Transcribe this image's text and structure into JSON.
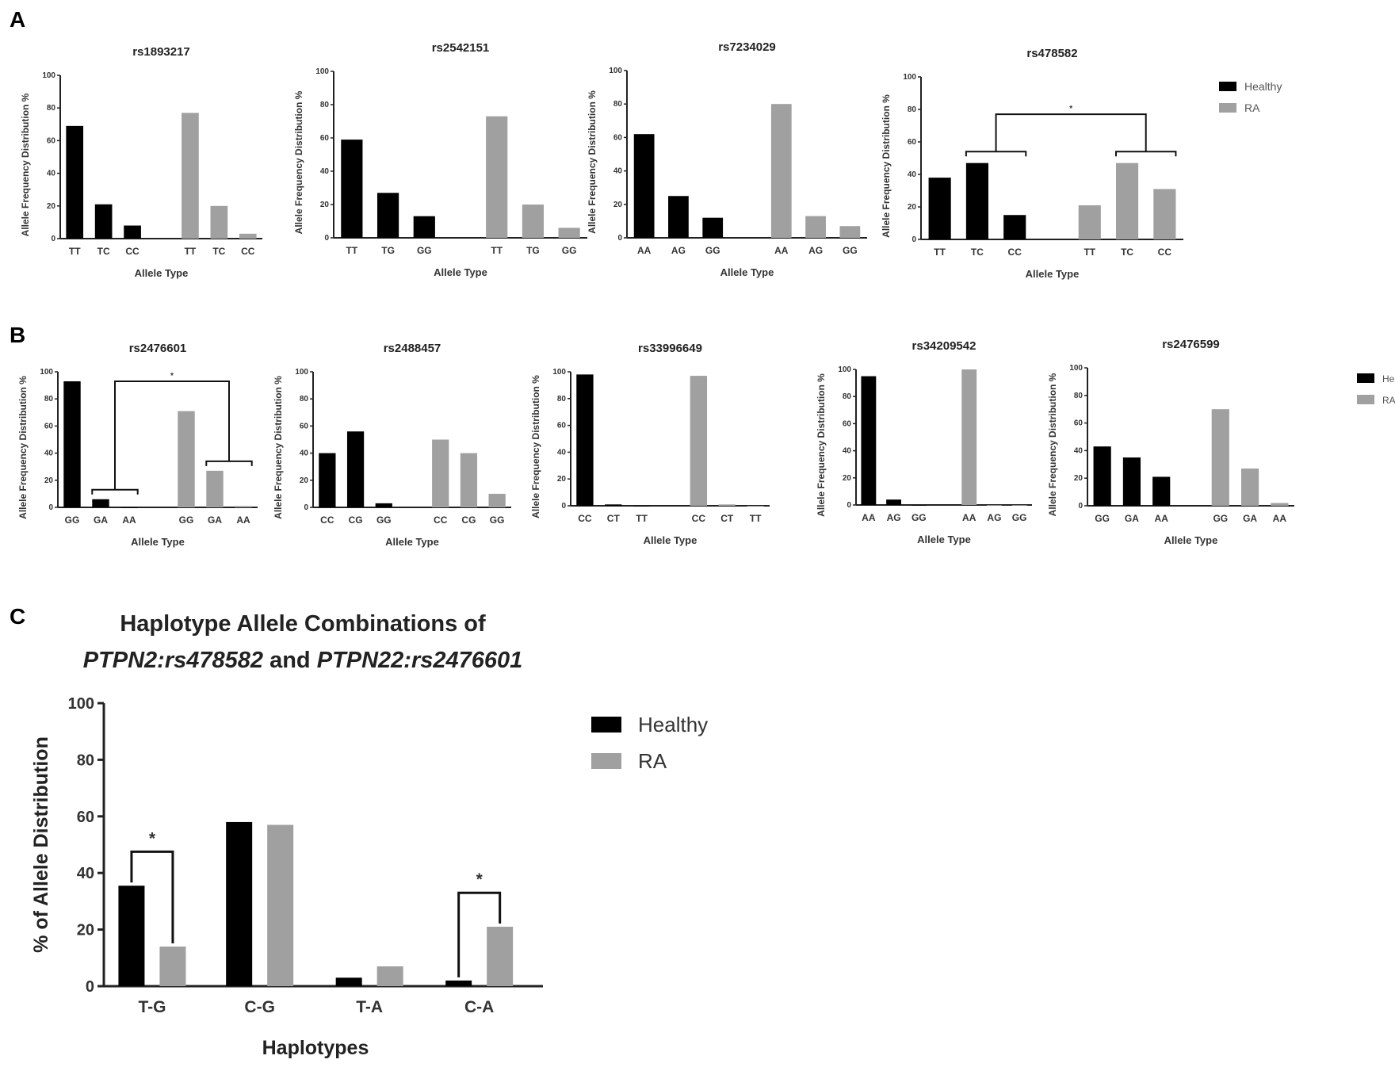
{
  "panel_labels": [
    "A",
    "B",
    "C"
  ],
  "colors": {
    "Healthy": "#000000",
    "RA": "#a0a0a0"
  },
  "legend": [
    "Healthy",
    "RA"
  ],
  "chart_data": [
    {
      "type": "bar",
      "title": "rs1893217",
      "xlabel": "Allele Type",
      "ylabel": "Allele Frequency Distribution %",
      "ylim": [
        0,
        100
      ],
      "yticks": [
        "0",
        "20",
        "40",
        "60",
        "80",
        "100"
      ],
      "categories": [
        "TT",
        "TC",
        "CC"
      ],
      "series": [
        {
          "name": "Healthy",
          "values": [
            69,
            21,
            8
          ]
        },
        {
          "name": "RA",
          "values": [
            77,
            20,
            3
          ]
        }
      ]
    },
    {
      "type": "bar",
      "title": "rs2542151",
      "xlabel": "Allele Type",
      "ylabel": "Allele Frequency Distribution %",
      "ylim": [
        0,
        100
      ],
      "yticks": [
        "0",
        "20",
        "40",
        "60",
        "80",
        "100"
      ],
      "categories": [
        "TT",
        "TG",
        "GG"
      ],
      "series": [
        {
          "name": "Healthy",
          "values": [
            59,
            27,
            13
          ]
        },
        {
          "name": "RA",
          "values": [
            73,
            20,
            6
          ]
        }
      ]
    },
    {
      "type": "bar",
      "title": "rs7234029",
      "xlabel": "Allele Type",
      "ylabel": "Allele Frequency Distribution %",
      "ylim": [
        0,
        100
      ],
      "yticks": [
        "0",
        "20",
        "40",
        "60",
        "80",
        "100"
      ],
      "categories": [
        "AA",
        "AG",
        "GG"
      ],
      "series": [
        {
          "name": "Healthy",
          "values": [
            62,
            25,
            12
          ]
        },
        {
          "name": "RA",
          "values": [
            80,
            13,
            7
          ]
        }
      ]
    },
    {
      "type": "bar",
      "title": "rs478582",
      "xlabel": "Allele Type",
      "ylabel": "Allele Frequency Distribution %",
      "ylim": [
        0,
        100
      ],
      "yticks": [
        "0",
        "20",
        "40",
        "60",
        "80",
        "100"
      ],
      "categories": [
        "TT",
        "TC",
        "CC"
      ],
      "series": [
        {
          "name": "Healthy",
          "values": [
            38,
            47,
            15
          ]
        },
        {
          "name": "RA",
          "values": [
            21,
            47,
            31
          ]
        }
      ],
      "significance": {
        "healthy_indices": [
          1,
          2
        ],
        "ra_indices": [
          1,
          2
        ],
        "label": "*"
      }
    },
    {
      "type": "bar",
      "title": "rs2476601",
      "xlabel": "Allele Type",
      "ylabel": "Allele Frequency Distribution %",
      "ylim": [
        0,
        100
      ],
      "yticks": [
        "0",
        "20",
        "40",
        "60",
        "80",
        "100"
      ],
      "categories": [
        "GG",
        "GA",
        "AA"
      ],
      "series": [
        {
          "name": "Healthy",
          "values": [
            93,
            6,
            0
          ]
        },
        {
          "name": "RA",
          "values": [
            71,
            27,
            1
          ]
        }
      ],
      "significance": {
        "healthy_indices": [
          1,
          2
        ],
        "ra_indices": [
          1,
          2
        ],
        "label": "*"
      }
    },
    {
      "type": "bar",
      "title": "rs2488457",
      "xlabel": "Allele Type",
      "ylabel": "Allele Frequency Distribution %",
      "ylim": [
        0,
        100
      ],
      "yticks": [
        "0",
        "20",
        "40",
        "60",
        "80",
        "100"
      ],
      "categories": [
        "CC",
        "CG",
        "GG"
      ],
      "series": [
        {
          "name": "Healthy",
          "values": [
            40,
            56,
            3
          ]
        },
        {
          "name": "RA",
          "values": [
            50,
            40,
            10
          ]
        }
      ]
    },
    {
      "type": "bar",
      "title": "rs33996649",
      "xlabel": "Allele Type",
      "ylabel": "Allele Frequency Distribution %",
      "ylim": [
        0,
        100
      ],
      "yticks": [
        "0",
        "20",
        "40",
        "60",
        "80",
        "100"
      ],
      "categories": [
        "CC",
        "CT",
        "TT"
      ],
      "series": [
        {
          "name": "Healthy",
          "values": [
            98,
            1,
            0
          ]
        },
        {
          "name": "RA",
          "values": [
            97,
            1,
            0
          ]
        }
      ]
    },
    {
      "type": "bar",
      "title": "rs34209542",
      "xlabel": "Allele Type",
      "ylabel": "Allele Frequency Distribution %",
      "ylim": [
        0,
        100
      ],
      "yticks": [
        "0",
        "20",
        "40",
        "60",
        "80",
        "100"
      ],
      "categories": [
        "AA",
        "AG",
        "GG"
      ],
      "series": [
        {
          "name": "Healthy",
          "values": [
            95,
            4,
            0
          ]
        },
        {
          "name": "RA",
          "values": [
            100,
            0,
            0
          ]
        }
      ]
    },
    {
      "type": "bar",
      "title": "rs2476599",
      "xlabel": "Allele Type",
      "ylabel": "Allele Frequency Distribution %",
      "ylim": [
        0,
        100
      ],
      "yticks": [
        "0",
        "20",
        "40",
        "60",
        "80",
        "100"
      ],
      "categories": [
        "GG",
        "GA",
        "AA"
      ],
      "series": [
        {
          "name": "Healthy",
          "values": [
            43,
            35,
            21
          ]
        },
        {
          "name": "RA",
          "values": [
            70,
            27,
            2
          ]
        }
      ]
    },
    {
      "type": "bar",
      "title_line1": "Haplotype Allele Combinations of",
      "title_line2": [
        "PTPN2:rs478582",
        " and ",
        "PTPN22:rs2476601"
      ],
      "xlabel": "Haplotypes",
      "ylabel": "% of Allele Distribution",
      "ylim": [
        0,
        100
      ],
      "yticks": [
        "0",
        "20",
        "40",
        "60",
        "80",
        "100"
      ],
      "categories": [
        "T-G",
        "C-G",
        "T-A",
        "C-A"
      ],
      "series": [
        {
          "name": "Healthy",
          "values": [
            35.5,
            58,
            3,
            2
          ]
        },
        {
          "name": "RA",
          "values": [
            14,
            57,
            7,
            21
          ]
        }
      ],
      "significance": [
        {
          "category_index": 0,
          "label": "*"
        },
        {
          "category_index": 3,
          "label": "*"
        }
      ]
    }
  ]
}
